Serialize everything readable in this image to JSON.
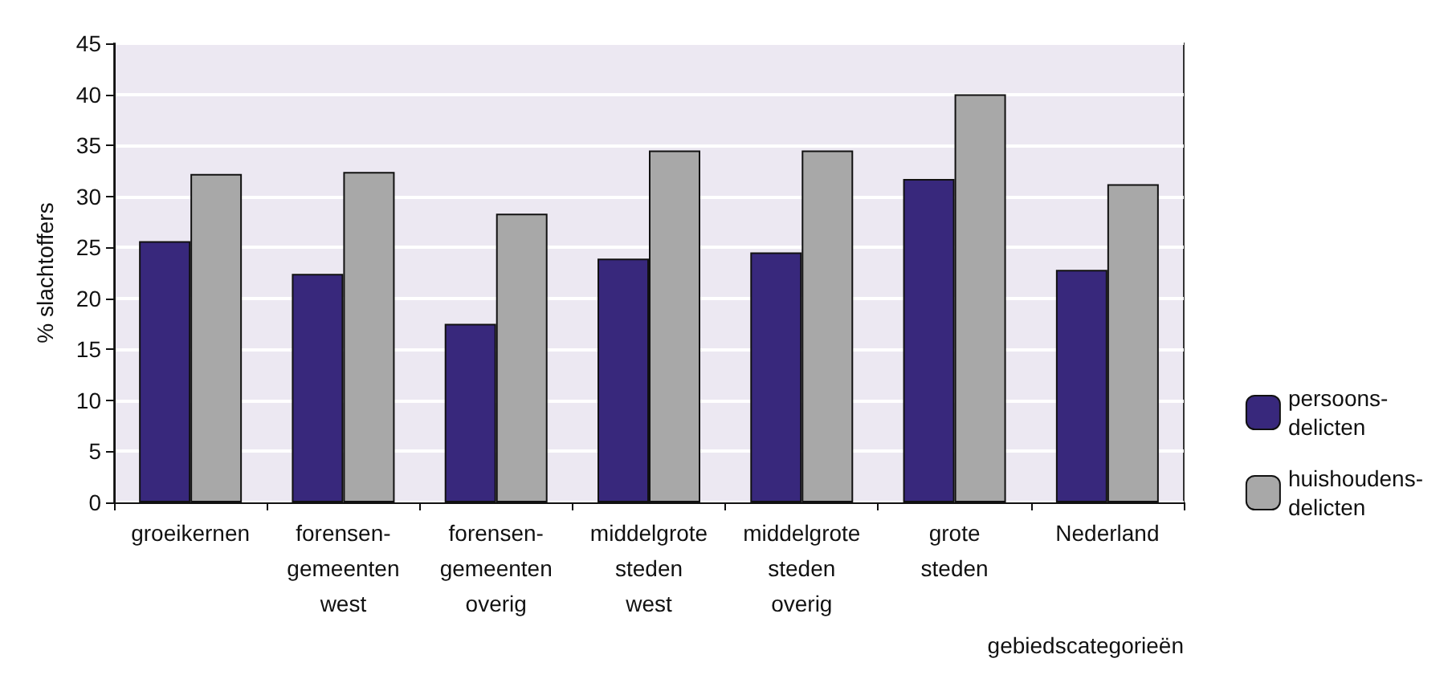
{
  "chart_data": {
    "type": "bar",
    "ylabel": "% slachtoffers",
    "xlabel": "gebiedscategorieën",
    "categories": [
      "groeikernen",
      "forensen-\ngemeenten\nwest",
      "forensen-\ngemeenten\noverig",
      "middelgrote\nsteden\nwest",
      "middelgrote\nsteden\noverig",
      "grote\nsteden",
      "Nederland"
    ],
    "series": [
      {
        "name": "persoons-\ndelicten",
        "color": "#38287c",
        "values": [
          25.6,
          22.4,
          17.5,
          23.9,
          24.5,
          31.7,
          22.8
        ]
      },
      {
        "name": "huishoudens-\ndelicten",
        "color": "#a8a8a8",
        "values": [
          32.2,
          32.4,
          28.3,
          34.5,
          34.5,
          40,
          31.2
        ]
      }
    ],
    "ylim": [
      0,
      45
    ],
    "yticks": [
      0,
      5,
      10,
      15,
      20,
      25,
      30,
      35,
      40,
      45
    ],
    "grid": "y",
    "legend": "right"
  }
}
